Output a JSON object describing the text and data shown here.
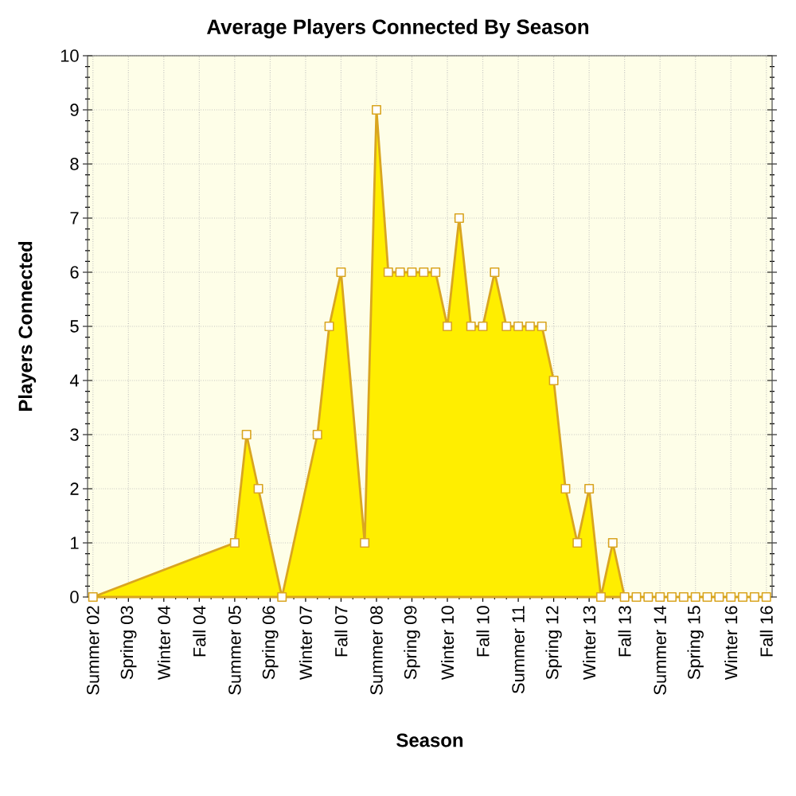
{
  "chart_data": {
    "type": "area",
    "title": "Average Players Connected By Season",
    "xlabel": "Season",
    "ylabel": "Players Connected",
    "x": [
      "2002-07",
      "2005-07",
      "2005-10",
      "2006-01",
      "2006-07",
      "2007-04",
      "2007-07",
      "2007-10",
      "2008-04",
      "2008-07",
      "2008-10",
      "2009-01",
      "2009-04",
      "2009-07",
      "2009-10",
      "2010-01",
      "2010-04",
      "2010-07",
      "2010-10",
      "2011-01",
      "2011-04",
      "2011-07",
      "2011-10",
      "2012-01",
      "2012-04",
      "2012-07",
      "2012-10",
      "2013-01",
      "2013-04",
      "2013-07",
      "2013-10",
      "2014-01",
      "2014-04",
      "2014-07",
      "2014-10",
      "2015-01",
      "2015-04",
      "2015-07",
      "2015-10",
      "2016-01",
      "2016-04",
      "2016-07",
      "2016-10"
    ],
    "values": [
      0,
      1,
      3,
      2,
      0,
      3,
      5,
      6,
      1,
      9,
      6,
      6,
      6,
      6,
      6,
      5,
      7,
      5,
      5,
      6,
      5,
      5,
      5,
      5,
      4,
      2,
      1,
      2,
      0,
      1,
      0,
      0,
      0,
      0,
      0,
      0,
      0,
      0,
      0,
      0,
      0,
      0,
      0
    ],
    "color": "#ffee00",
    "xlim": [
      "2002-05-20",
      "2016-11-15"
    ],
    "xticks": [
      {
        "value": "2002-07",
        "label": "Summer 02"
      },
      {
        "value": "2003-04",
        "label": "Spring 03"
      },
      {
        "value": "2004-01",
        "label": "Winter 04"
      },
      {
        "value": "2004-10",
        "label": "Fall 04"
      },
      {
        "value": "2005-07",
        "label": "Summer 05"
      },
      {
        "value": "2006-04",
        "label": "Spring 06"
      },
      {
        "value": "2007-01",
        "label": "Winter 07"
      },
      {
        "value": "2007-10",
        "label": "Fall 07"
      },
      {
        "value": "2008-07",
        "label": "Summer 08"
      },
      {
        "value": "2009-04",
        "label": "Spring 09"
      },
      {
        "value": "2010-01",
        "label": "Winter 10"
      },
      {
        "value": "2010-10",
        "label": "Fall 10"
      },
      {
        "value": "2011-07",
        "label": "Summer 11"
      },
      {
        "value": "2012-04",
        "label": "Spring 12"
      },
      {
        "value": "2013-01",
        "label": "Winter 13"
      },
      {
        "value": "2013-10",
        "label": "Fall 13"
      },
      {
        "value": "2014-07",
        "label": "Summer 14"
      },
      {
        "value": "2015-04",
        "label": "Spring 15"
      },
      {
        "value": "2016-01",
        "label": "Winter 16"
      },
      {
        "value": "2016-10",
        "label": "Fall 16"
      }
    ],
    "ylim": [
      0,
      10
    ],
    "yticks": [
      0,
      1,
      2,
      3,
      4,
      5,
      6,
      7,
      8,
      9,
      10
    ],
    "grid": true,
    "marker": "square",
    "line_style": "solid"
  }
}
